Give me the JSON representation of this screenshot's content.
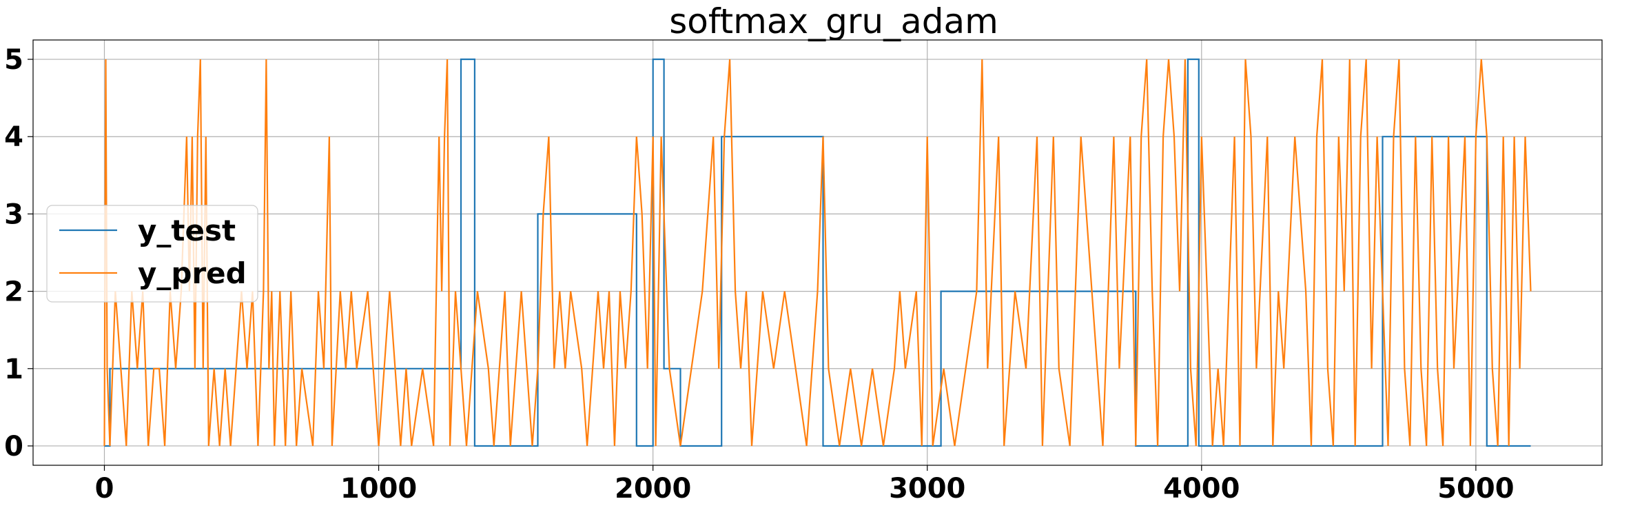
{
  "chart_data": {
    "type": "line",
    "title": "softmax_gru_adam",
    "xlabel": "",
    "ylabel": "",
    "xlim": [
      -260,
      5460
    ],
    "ylim": [
      -0.25,
      5.25
    ],
    "x_ticks": [
      0,
      1000,
      2000,
      3000,
      4000,
      5000
    ],
    "y_ticks": [
      0,
      1,
      2,
      3,
      4,
      5
    ],
    "grid": true,
    "legend_position": "center-left",
    "series": [
      {
        "name": "y_test",
        "color": "#1f77b4",
        "points": [
          [
            0,
            0
          ],
          [
            20,
            0
          ],
          [
            20,
            1
          ],
          [
            1300,
            1
          ],
          [
            1300,
            5
          ],
          [
            1350,
            5
          ],
          [
            1350,
            0
          ],
          [
            1580,
            0
          ],
          [
            1580,
            3
          ],
          [
            1940,
            3
          ],
          [
            1940,
            0
          ],
          [
            2000,
            0
          ],
          [
            2000,
            5
          ],
          [
            2040,
            5
          ],
          [
            2040,
            1
          ],
          [
            2100,
            1
          ],
          [
            2100,
            0
          ],
          [
            2250,
            0
          ],
          [
            2250,
            4
          ],
          [
            2620,
            4
          ],
          [
            2620,
            0
          ],
          [
            3050,
            0
          ],
          [
            3050,
            2
          ],
          [
            3760,
            2
          ],
          [
            3760,
            0
          ],
          [
            3950,
            0
          ],
          [
            3950,
            5
          ],
          [
            3990,
            5
          ],
          [
            3990,
            0
          ],
          [
            4660,
            0
          ],
          [
            4660,
            4
          ],
          [
            5040,
            4
          ],
          [
            5040,
            0
          ],
          [
            5200,
            0
          ]
        ]
      },
      {
        "name": "y_pred",
        "color": "#ff7f0e",
        "points": [
          [
            0,
            0
          ],
          [
            5,
            5
          ],
          [
            10,
            1
          ],
          [
            20,
            0
          ],
          [
            40,
            2
          ],
          [
            60,
            1
          ],
          [
            80,
            0
          ],
          [
            100,
            2
          ],
          [
            120,
            1
          ],
          [
            140,
            2
          ],
          [
            160,
            0
          ],
          [
            180,
            1
          ],
          [
            200,
            1
          ],
          [
            220,
            0
          ],
          [
            240,
            2
          ],
          [
            260,
            1
          ],
          [
            280,
            2
          ],
          [
            300,
            4
          ],
          [
            310,
            2
          ],
          [
            320,
            4
          ],
          [
            330,
            1
          ],
          [
            340,
            4
          ],
          [
            350,
            5
          ],
          [
            360,
            1
          ],
          [
            370,
            4
          ],
          [
            380,
            0
          ],
          [
            400,
            1
          ],
          [
            420,
            0
          ],
          [
            440,
            1
          ],
          [
            460,
            0
          ],
          [
            480,
            1
          ],
          [
            500,
            2
          ],
          [
            520,
            1
          ],
          [
            540,
            2
          ],
          [
            560,
            0
          ],
          [
            580,
            2
          ],
          [
            590,
            5
          ],
          [
            600,
            1
          ],
          [
            610,
            2
          ],
          [
            620,
            0
          ],
          [
            640,
            2
          ],
          [
            660,
            0
          ],
          [
            680,
            2
          ],
          [
            700,
            0
          ],
          [
            720,
            1
          ],
          [
            760,
            0
          ],
          [
            780,
            2
          ],
          [
            800,
            1
          ],
          [
            820,
            4
          ],
          [
            830,
            0
          ],
          [
            860,
            2
          ],
          [
            880,
            1
          ],
          [
            900,
            2
          ],
          [
            920,
            1
          ],
          [
            960,
            2
          ],
          [
            1000,
            0
          ],
          [
            1040,
            2
          ],
          [
            1060,
            1
          ],
          [
            1080,
            0
          ],
          [
            1100,
            1
          ],
          [
            1120,
            0
          ],
          [
            1160,
            1
          ],
          [
            1200,
            0
          ],
          [
            1220,
            4
          ],
          [
            1230,
            2
          ],
          [
            1240,
            4
          ],
          [
            1250,
            5
          ],
          [
            1260,
            0
          ],
          [
            1280,
            2
          ],
          [
            1300,
            1
          ],
          [
            1320,
            0
          ],
          [
            1340,
            1
          ],
          [
            1360,
            2
          ],
          [
            1400,
            1
          ],
          [
            1420,
            0
          ],
          [
            1460,
            2
          ],
          [
            1480,
            0
          ],
          [
            1500,
            1
          ],
          [
            1520,
            2
          ],
          [
            1560,
            0
          ],
          [
            1580,
            1
          ],
          [
            1600,
            3
          ],
          [
            1620,
            4
          ],
          [
            1640,
            1
          ],
          [
            1660,
            2
          ],
          [
            1680,
            1
          ],
          [
            1700,
            2
          ],
          [
            1740,
            1
          ],
          [
            1760,
            0
          ],
          [
            1800,
            2
          ],
          [
            1820,
            1
          ],
          [
            1840,
            2
          ],
          [
            1860,
            0
          ],
          [
            1880,
            2
          ],
          [
            1900,
            1
          ],
          [
            1920,
            2
          ],
          [
            1940,
            4
          ],
          [
            1960,
            3
          ],
          [
            1980,
            1
          ],
          [
            2000,
            4
          ],
          [
            2010,
            0
          ],
          [
            2030,
            4
          ],
          [
            2060,
            1
          ],
          [
            2100,
            0
          ],
          [
            2140,
            1
          ],
          [
            2180,
            2
          ],
          [
            2220,
            4
          ],
          [
            2240,
            1
          ],
          [
            2260,
            4
          ],
          [
            2280,
            5
          ],
          [
            2300,
            2
          ],
          [
            2320,
            1
          ],
          [
            2340,
            2
          ],
          [
            2360,
            0
          ],
          [
            2400,
            2
          ],
          [
            2440,
            1
          ],
          [
            2480,
            2
          ],
          [
            2520,
            1
          ],
          [
            2560,
            0
          ],
          [
            2600,
            2
          ],
          [
            2620,
            4
          ],
          [
            2640,
            1
          ],
          [
            2680,
            0
          ],
          [
            2720,
            1
          ],
          [
            2760,
            0
          ],
          [
            2800,
            1
          ],
          [
            2840,
            0
          ],
          [
            2880,
            1
          ],
          [
            2900,
            2
          ],
          [
            2920,
            1
          ],
          [
            2960,
            2
          ],
          [
            2980,
            0
          ],
          [
            3000,
            4
          ],
          [
            3020,
            0
          ],
          [
            3060,
            1
          ],
          [
            3100,
            0
          ],
          [
            3140,
            1
          ],
          [
            3180,
            2
          ],
          [
            3200,
            5
          ],
          [
            3220,
            1
          ],
          [
            3260,
            4
          ],
          [
            3280,
            0
          ],
          [
            3320,
            2
          ],
          [
            3360,
            1
          ],
          [
            3400,
            4
          ],
          [
            3420,
            0
          ],
          [
            3460,
            4
          ],
          [
            3480,
            1
          ],
          [
            3520,
            0
          ],
          [
            3560,
            4
          ],
          [
            3600,
            2
          ],
          [
            3640,
            0
          ],
          [
            3680,
            4
          ],
          [
            3700,
            1
          ],
          [
            3740,
            4
          ],
          [
            3760,
            0
          ],
          [
            3780,
            4
          ],
          [
            3800,
            5
          ],
          [
            3820,
            2
          ],
          [
            3840,
            0
          ],
          [
            3860,
            4
          ],
          [
            3880,
            5
          ],
          [
            3900,
            4
          ],
          [
            3920,
            2
          ],
          [
            3940,
            5
          ],
          [
            3960,
            1
          ],
          [
            3980,
            0
          ],
          [
            4000,
            4
          ],
          [
            4020,
            2
          ],
          [
            4040,
            0
          ],
          [
            4060,
            1
          ],
          [
            4080,
            0
          ],
          [
            4120,
            4
          ],
          [
            4140,
            0
          ],
          [
            4160,
            5
          ],
          [
            4180,
            4
          ],
          [
            4200,
            1
          ],
          [
            4240,
            4
          ],
          [
            4260,
            0
          ],
          [
            4280,
            2
          ],
          [
            4300,
            1
          ],
          [
            4340,
            4
          ],
          [
            4380,
            2
          ],
          [
            4400,
            0
          ],
          [
            4420,
            4
          ],
          [
            4440,
            5
          ],
          [
            4460,
            1
          ],
          [
            4480,
            0
          ],
          [
            4500,
            4
          ],
          [
            4520,
            2
          ],
          [
            4540,
            5
          ],
          [
            4560,
            0
          ],
          [
            4580,
            4
          ],
          [
            4600,
            5
          ],
          [
            4620,
            1
          ],
          [
            4640,
            4
          ],
          [
            4660,
            2
          ],
          [
            4680,
            0
          ],
          [
            4700,
            4
          ],
          [
            4720,
            5
          ],
          [
            4740,
            1
          ],
          [
            4760,
            0
          ],
          [
            4780,
            4
          ],
          [
            4800,
            1
          ],
          [
            4820,
            0
          ],
          [
            4840,
            4
          ],
          [
            4860,
            1
          ],
          [
            4880,
            0
          ],
          [
            4900,
            4
          ],
          [
            4920,
            1
          ],
          [
            4960,
            4
          ],
          [
            4980,
            0
          ],
          [
            5000,
            4
          ],
          [
            5020,
            5
          ],
          [
            5040,
            4
          ],
          [
            5060,
            1
          ],
          [
            5080,
            0
          ],
          [
            5100,
            4
          ],
          [
            5120,
            0
          ],
          [
            5140,
            4
          ],
          [
            5160,
            1
          ],
          [
            5180,
            4
          ],
          [
            5200,
            2
          ]
        ]
      }
    ]
  }
}
